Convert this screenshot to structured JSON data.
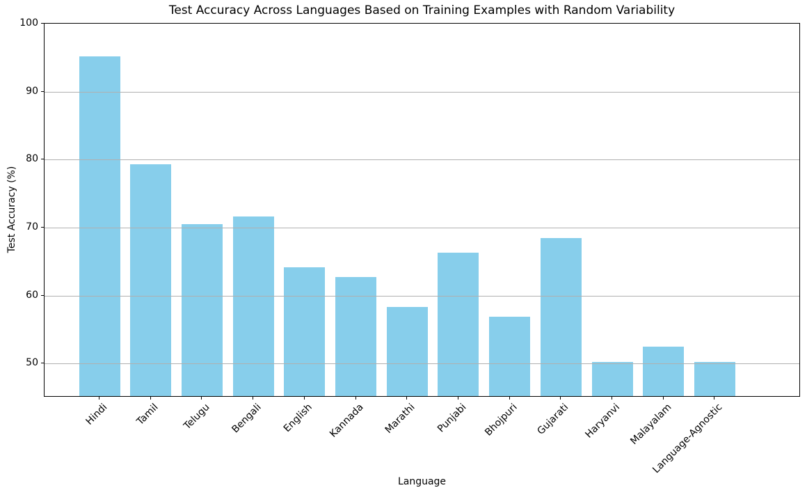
{
  "chart_data": {
    "type": "bar",
    "title": "Test Accuracy Across Languages Based on Training Examples with Random Variability",
    "xlabel": "Language",
    "ylabel": "Test Accuracy (%)",
    "categories": [
      "Hindi",
      "Tamil",
      "Telugu",
      "Bengali",
      "English",
      "Kannada",
      "Marathi",
      "Punjabi",
      "Bhojpuri",
      "Gujarati",
      "Haryanvi",
      "Malayalam",
      "Language-Agnostic"
    ],
    "values": [
      95.0,
      79.1,
      70.3,
      71.4,
      64.0,
      62.5,
      58.1,
      66.1,
      56.7,
      68.2,
      50.0,
      52.3,
      50.0
    ],
    "ylim": [
      45,
      100
    ],
    "yticks": [
      50,
      60,
      70,
      80,
      90,
      100
    ],
    "x_tick_rotation_deg": 45,
    "grid": "horizontal-y",
    "grid_on_top_of_bars": true,
    "legend": "none",
    "colors": {
      "bar": "#87CEEB",
      "gridline": "#b0b0b0",
      "spine": "#000000",
      "text": "#000000",
      "background": "#ffffff"
    }
  }
}
